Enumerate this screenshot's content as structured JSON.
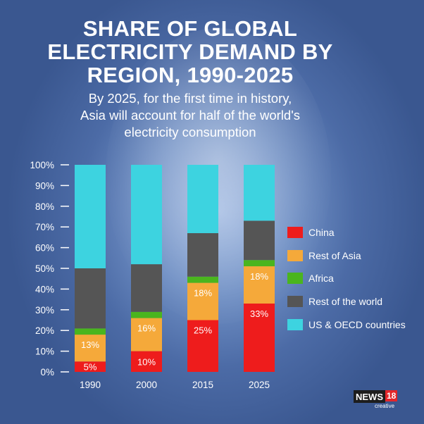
{
  "title_lines": [
    "SHARE OF GLOBAL",
    "ELECTRICITY DEMAND BY",
    "REGION, 1990-2025"
  ],
  "subtitle_lines": [
    "By 2025, for the first time in history,",
    "Asia will account for half of the world's",
    "electricity consumption"
  ],
  "logo": {
    "word": "NEWS",
    "number": "18",
    "sub": "creative"
  },
  "chart_data": {
    "type": "bar",
    "stacked": true,
    "categories": [
      "1990",
      "2000",
      "2015",
      "2025"
    ],
    "series": [
      {
        "name": "China",
        "color": "#ee1c1c",
        "values": [
          5,
          10,
          25,
          33
        ],
        "labels": [
          "5%",
          "10%",
          "25%",
          "33%"
        ]
      },
      {
        "name": "Rest of Asia",
        "color": "#f5a93a",
        "values": [
          13,
          16,
          18,
          18
        ],
        "labels": [
          "13%",
          "16%",
          "18%",
          "18%"
        ]
      },
      {
        "name": "Africa",
        "color": "#4ab51e",
        "values": [
          3,
          3,
          3,
          3
        ],
        "labels": [
          "",
          "",
          "",
          ""
        ]
      },
      {
        "name": "Rest of the world",
        "color": "#555555",
        "values": [
          29,
          23,
          21,
          19
        ],
        "labels": [
          "",
          "",
          "",
          ""
        ]
      },
      {
        "name": "US & OECD countries",
        "color": "#3dd3e0",
        "values": [
          50,
          48,
          33,
          27
        ],
        "labels": [
          "",
          "",
          "",
          ""
        ]
      }
    ],
    "y_ticks": [
      "0%",
      "10%",
      "20%",
      "30%",
      "40%",
      "50%",
      "60%",
      "70%",
      "80%",
      "90%",
      "100%"
    ],
    "ylim": [
      0,
      100
    ],
    "legend_position": "right"
  }
}
